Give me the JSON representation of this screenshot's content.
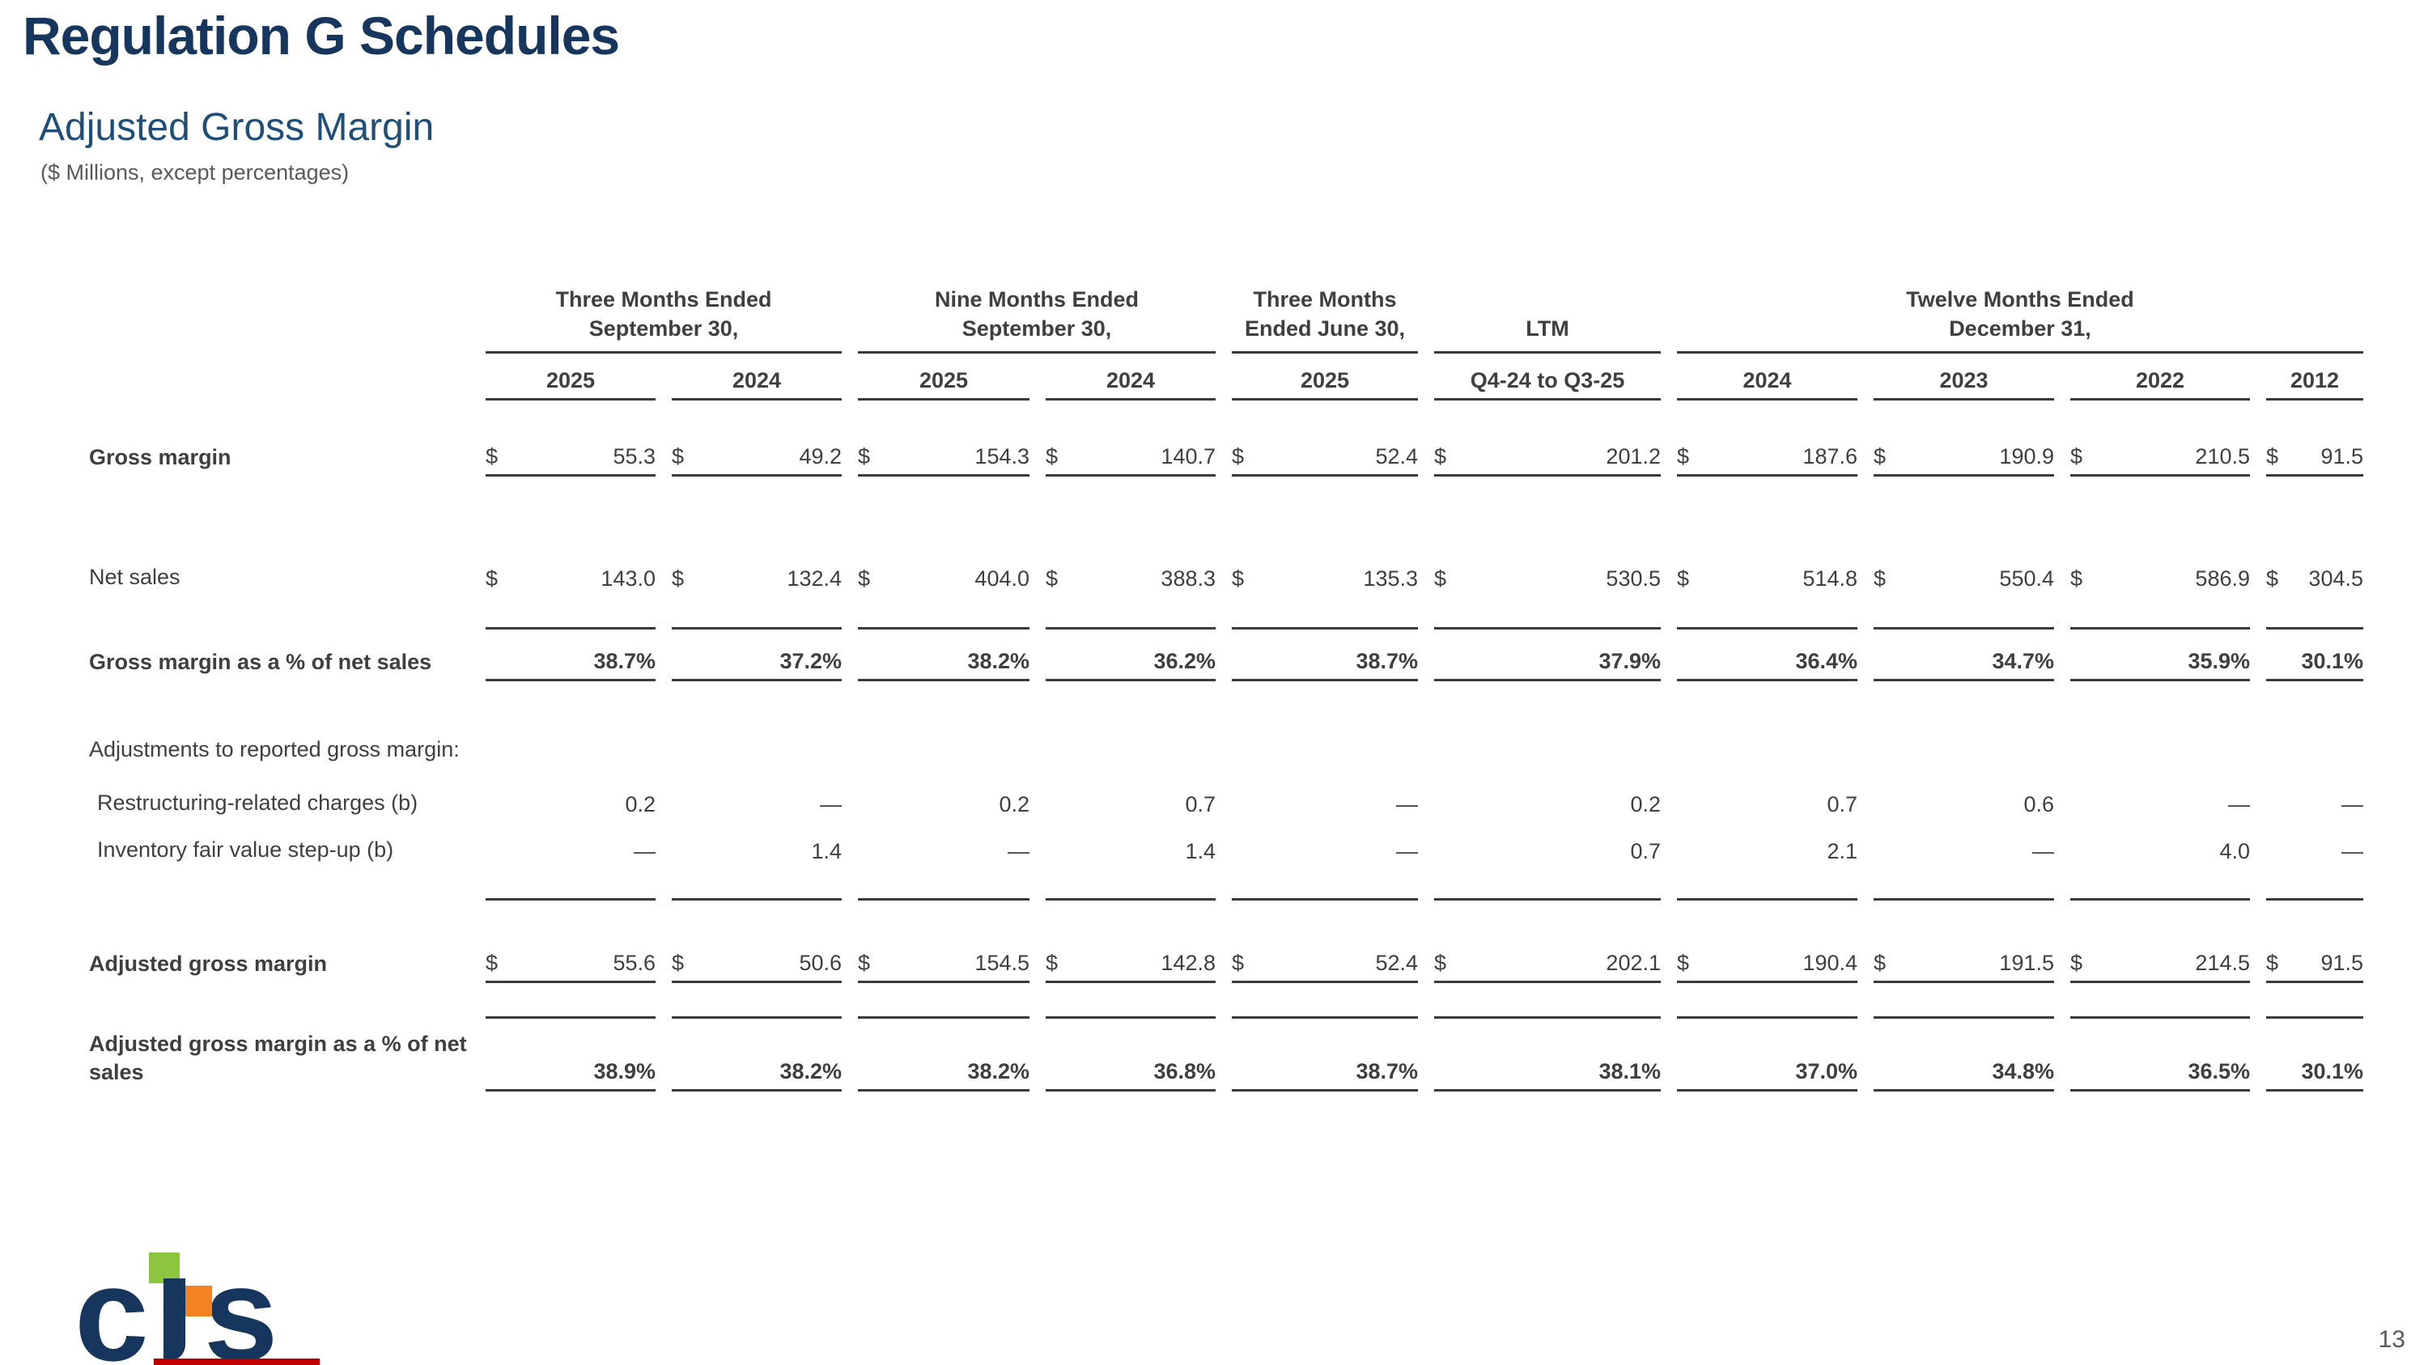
{
  "page": {
    "title": "Regulation G Schedules",
    "subtitle": "Adjusted Gross Margin",
    "note": "($ Millions, except percentages)",
    "page_number": "13",
    "logo_c": "c",
    "logo_s": "s",
    "colors": {
      "title_navy": "#17365D",
      "subtitle_blue": "#1F4E79",
      "table_text": "#3f3f3f",
      "logo_green": "#8CC63F",
      "logo_orange": "#F58220",
      "footer_bar_red": "#C00000"
    }
  },
  "table": {
    "groups": [
      {
        "label_lines": [
          "Three Months Ended",
          "September 30,"
        ],
        "span": 2
      },
      {
        "label_lines": [
          "Nine Months Ended",
          "September 30,"
        ],
        "span": 2
      },
      {
        "label_lines": [
          "Three Months",
          "Ended June 30,"
        ],
        "span": 1
      },
      {
        "label_lines": [
          "LTM"
        ],
        "span": 1
      },
      {
        "label_lines": [
          "Twelve Months Ended",
          "December 31,"
        ],
        "span": 4
      }
    ],
    "years": [
      "2025",
      "2024",
      "2025",
      "2024",
      "2025",
      "Q4-24 to Q3-25",
      "2024",
      "2023",
      "2022",
      "2012"
    ],
    "rows": [
      {
        "name": "gross-margin",
        "type": "dollar",
        "bold": true,
        "underline": true,
        "label": "Gross margin",
        "values": [
          "55.3",
          "49.2",
          "154.3",
          "140.7",
          "52.4",
          "201.2",
          "187.6",
          "190.9",
          "210.5",
          "91.5"
        ]
      },
      {
        "name": "net-sales",
        "type": "dollar",
        "bold": false,
        "underline": false,
        "label": "Net sales",
        "values": [
          "143.0",
          "132.4",
          "404.0",
          "388.3",
          "135.3",
          "530.5",
          "514.8",
          "550.4",
          "586.9",
          "304.5"
        ]
      },
      {
        "name": "lines-1",
        "type": "lines"
      },
      {
        "name": "gross-margin-pct",
        "type": "percent",
        "bold": true,
        "underline": true,
        "label": "Gross margin as a % of net sales",
        "values": [
          "38.7%",
          "37.2%",
          "38.2%",
          "36.2%",
          "38.7%",
          "37.9%",
          "36.4%",
          "34.7%",
          "35.9%",
          "30.1%"
        ]
      },
      {
        "name": "adjustments-header",
        "type": "section",
        "bold": false,
        "label": "Adjustments to reported gross margin:"
      },
      {
        "name": "restructuring-charges",
        "type": "plain",
        "bold": false,
        "underline": false,
        "label": "Restructuring-related charges (b)",
        "values": [
          "0.2",
          "—",
          "0.2",
          "0.7",
          "—",
          "0.2",
          "0.7",
          "0.6",
          "—",
          "—"
        ]
      },
      {
        "name": "inventory-step-up",
        "type": "plain",
        "bold": false,
        "underline": false,
        "label": "Inventory fair value step-up (b)",
        "values": [
          "—",
          "1.4",
          "—",
          "1.4",
          "—",
          "0.7",
          "2.1",
          "—",
          "4.0",
          "—"
        ]
      },
      {
        "name": "lines-2",
        "type": "lines"
      },
      {
        "name": "adjusted-gross-margin",
        "type": "dollar",
        "bold": true,
        "underline": true,
        "label": "Adjusted gross margin",
        "values": [
          "55.6",
          "50.6",
          "154.5",
          "142.8",
          "52.4",
          "202.1",
          "190.4",
          "191.5",
          "214.5",
          "91.5"
        ]
      },
      {
        "name": "lines-3",
        "type": "lines"
      },
      {
        "name": "adjusted-gross-margin-pct",
        "type": "percent",
        "bold": true,
        "underline": true,
        "label": "Adjusted gross margin as a % of net sales",
        "values": [
          "38.9%",
          "38.2%",
          "38.2%",
          "36.8%",
          "38.7%",
          "38.1%",
          "37.0%",
          "34.8%",
          "36.5%",
          "30.1%"
        ]
      }
    ]
  }
}
